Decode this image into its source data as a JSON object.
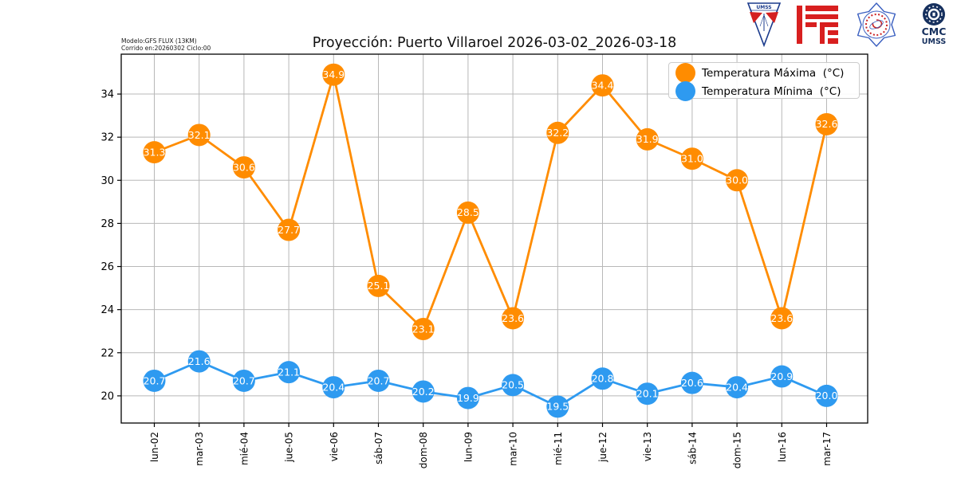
{
  "header": {
    "model_info_line1": "Modelo:GFS FLUX (13KM)",
    "model_info_line2": "Corrido en:20260302 Ciclo:00",
    "logos": {
      "umss_pennant_label": "UMSS",
      "cmc_line1": "CMC",
      "cmc_line2": "UMSS"
    }
  },
  "chart_data": {
    "type": "line",
    "title": "Proyección: Puerto Villaroel 2026-03-02_2026-03-18",
    "categories": [
      "lun-02",
      "mar-03",
      "mié-04",
      "jue-05",
      "vie-06",
      "sáb-07",
      "dom-08",
      "lun-09",
      "mar-10",
      "mié-11",
      "jue-12",
      "vie-13",
      "sáb-14",
      "dom-15",
      "lun-16",
      "mar-17"
    ],
    "series": [
      {
        "name": "Temperatura Máxima  (°C)",
        "color": "#ff8c00",
        "values": [
          31.3,
          32.1,
          30.6,
          27.7,
          34.9,
          25.1,
          23.1,
          28.5,
          23.6,
          32.2,
          34.4,
          31.9,
          31.0,
          30.0,
          23.6,
          32.6
        ]
      },
      {
        "name": "Temperatura Mínima  (°C)",
        "color": "#2e9af0",
        "values": [
          20.7,
          21.6,
          20.7,
          21.1,
          20.4,
          20.7,
          20.2,
          19.9,
          20.5,
          19.5,
          20.8,
          20.1,
          20.6,
          20.4,
          20.9,
          20.0
        ]
      }
    ],
    "xlabel": "",
    "ylabel": "",
    "yticks": [
      20,
      22,
      24,
      26,
      28,
      30,
      32,
      34
    ],
    "ylim": [
      18.74,
      35.85
    ],
    "grid": true,
    "legend_position": "upper right",
    "value_labels": true,
    "value_label_color": "#ffffff",
    "grid_color": "#b8b8b8",
    "axis_color": "#000000"
  }
}
